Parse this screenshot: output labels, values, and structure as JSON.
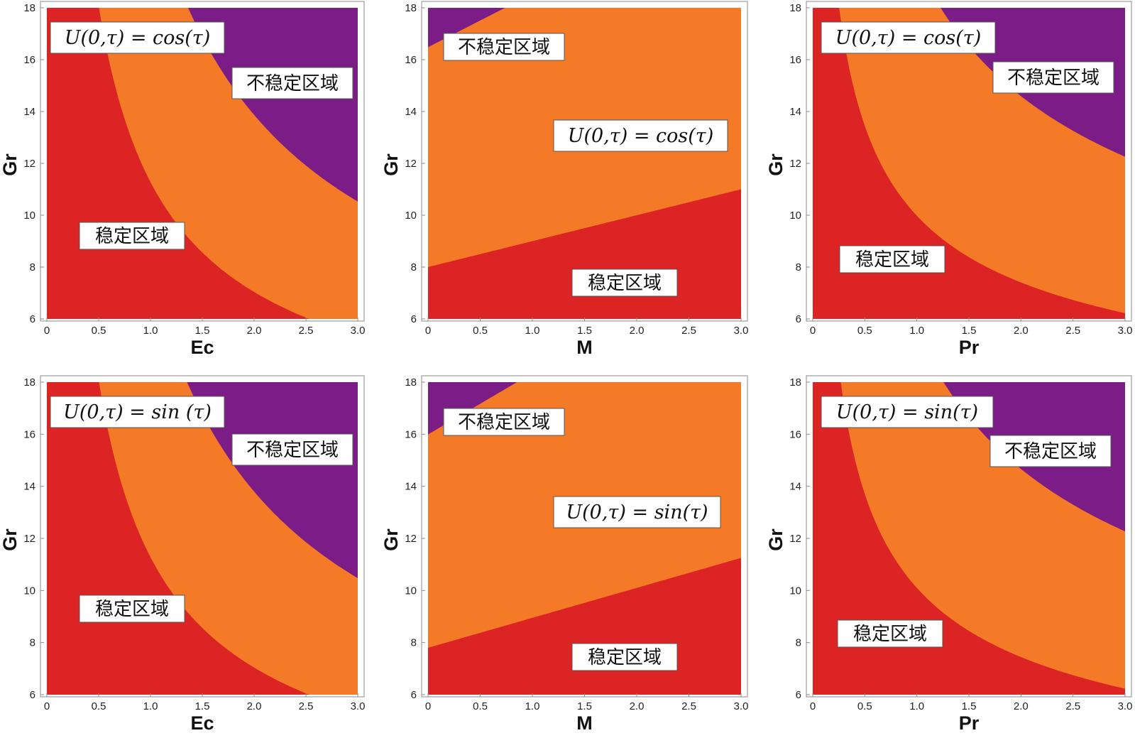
{
  "colors": {
    "stable": "#dc2424",
    "unstable": "#7b1c87",
    "band_fill": "#ffffff",
    "bands": [
      "#f47a27",
      "#f2b13a",
      "#d6c84a",
      "#a8c45a",
      "#74b274",
      "#4fa3a4",
      "#3d86c8",
      "#3a6bd4",
      "#3d3fc4"
    ]
  },
  "labels": {
    "stable_region": "稳定区域",
    "unstable_region": "不稳定区域"
  },
  "chart_data": [
    {
      "type": "heatmap",
      "xlabel": "Ec",
      "ylabel": "Gr",
      "xlim": [
        0,
        3
      ],
      "ylim": [
        6,
        18
      ],
      "x_ticks": [
        "0",
        "0.5",
        "1.0",
        "1.5",
        "2.0",
        "2.5",
        "3.0"
      ],
      "y_ticks": [
        "6",
        "8",
        "10",
        "12",
        "14",
        "16",
        "18"
      ],
      "annotation": "U(0,τ) = cos(τ)",
      "boundary": {
        "form": "hyperbolic",
        "k": 11.28,
        "p": 0.68
      },
      "band_extents": [
        0.97,
        0.96,
        0.95,
        0.94,
        0.93,
        0.92,
        0.91,
        0.84,
        0.71
      ]
    },
    {
      "type": "heatmap",
      "xlabel": "M",
      "ylabel": "Gr",
      "xlim": [
        0,
        3
      ],
      "ylim": [
        6,
        18
      ],
      "x_ticks": [
        "0",
        "0.5",
        "1.0",
        "1.5",
        "2.0",
        "2.5",
        "3.0"
      ],
      "y_ticks": [
        "6",
        "8",
        "10",
        "12",
        "14",
        "16",
        "18"
      ],
      "annotation": "U(0,τ) = cos(τ)",
      "boundary": {
        "form": "linear",
        "y0": 8.0,
        "slope": 1.0
      },
      "band_extents": [
        1.06,
        1.05,
        1.04,
        1.03,
        1.02,
        1.01,
        1.0,
        0.97,
        0.89
      ]
    },
    {
      "type": "heatmap",
      "xlabel": "Pr",
      "ylabel": "Gr",
      "xlim": [
        0,
        3
      ],
      "ylim": [
        6,
        18
      ],
      "x_ticks": [
        "0",
        "0.5",
        "1.0",
        "1.5",
        "2.0",
        "2.5",
        "3.0"
      ],
      "y_ticks": [
        "6",
        "8",
        "10",
        "12",
        "14",
        "16",
        "18"
      ],
      "annotation": "U(0,τ) = cos(τ)",
      "boundary": {
        "form": "hyperbolic",
        "k": 9.98,
        "p": 0.43
      },
      "band_extents": [
        0.97,
        0.96,
        0.95,
        0.94,
        0.93,
        0.92,
        0.91,
        0.87,
        0.79
      ]
    },
    {
      "type": "heatmap",
      "xlabel": "Ec",
      "ylabel": "Gr",
      "xlim": [
        0,
        3
      ],
      "ylim": [
        6,
        18
      ],
      "x_ticks": [
        "0",
        "0.5",
        "1.0",
        "1.5",
        "2.0",
        "2.5",
        "3.0"
      ],
      "y_ticks": [
        "6",
        "8",
        "10",
        "12",
        "14",
        "16",
        "18"
      ],
      "annotation": "U(0,τ) = sin (τ)",
      "boundary": {
        "form": "hyperbolic",
        "k": 11.28,
        "p": 0.68
      },
      "band_extents": [
        0.96,
        0.95,
        0.94,
        0.93,
        0.92,
        0.91,
        0.9,
        0.81,
        0.6
      ]
    },
    {
      "type": "heatmap",
      "xlabel": "M",
      "ylabel": "Gr",
      "xlim": [
        0,
        3
      ],
      "ylim": [
        6,
        18
      ],
      "x_ticks": [
        "0",
        "0.5",
        "1.0",
        "1.5",
        "2.0",
        "2.5",
        "3.0"
      ],
      "y_ticks": [
        "6",
        "8",
        "10",
        "12",
        "14",
        "16",
        "18"
      ],
      "annotation": "U(0,τ) = sin(τ)",
      "boundary": {
        "form": "linear",
        "y0": 7.8,
        "slope": 1.15
      },
      "band_extents": [
        1.05,
        1.04,
        1.03,
        1.02,
        1.01,
        1.0,
        0.99,
        0.96,
        0.88
      ]
    },
    {
      "type": "heatmap",
      "xlabel": "Pr",
      "ylabel": "Gr",
      "xlim": [
        0,
        3
      ],
      "ylim": [
        6,
        18
      ],
      "x_ticks": [
        "0",
        "0.5",
        "1.0",
        "1.5",
        "2.0",
        "2.5",
        "3.0"
      ],
      "y_ticks": [
        "6",
        "8",
        "10",
        "12",
        "14",
        "16",
        "18"
      ],
      "annotation": "U(0,τ) = sin(τ)",
      "boundary": {
        "form": "hyperbolic",
        "k": 10.1,
        "p": 0.44
      },
      "band_extents": [
        0.97,
        0.96,
        0.95,
        0.94,
        0.93,
        0.92,
        0.91,
        0.87,
        0.79
      ]
    }
  ]
}
